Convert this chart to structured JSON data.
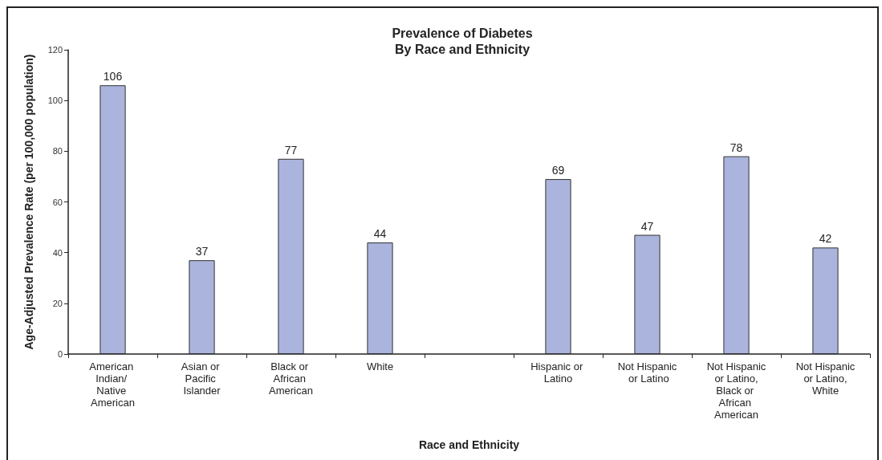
{
  "chart_data": {
    "type": "bar",
    "title": "Prevalence of Diabetes",
    "subtitle": "By Race and Ethnicity",
    "xlabel": "Race and Ethnicity",
    "ylabel": "Age-Adjusted Prevalence Rate (per 100,000 population)",
    "categories": [
      "American Indian/ Native American",
      "Asian or Pacific Islander",
      "Black or African American",
      "White",
      null,
      "Hispanic or Latino",
      "Not Hispanic or Latino",
      "Not Hispanic or Latino, Black or African American",
      "Not Hispanic or Latino, White"
    ],
    "values": [
      106,
      37,
      77,
      44,
      null,
      69,
      47,
      78,
      42
    ],
    "color": "#aab4dc",
    "ylim": [
      0,
      120
    ],
    "yticks": [
      0,
      20,
      40,
      60,
      80,
      100,
      120
    ],
    "data_labels": true
  }
}
